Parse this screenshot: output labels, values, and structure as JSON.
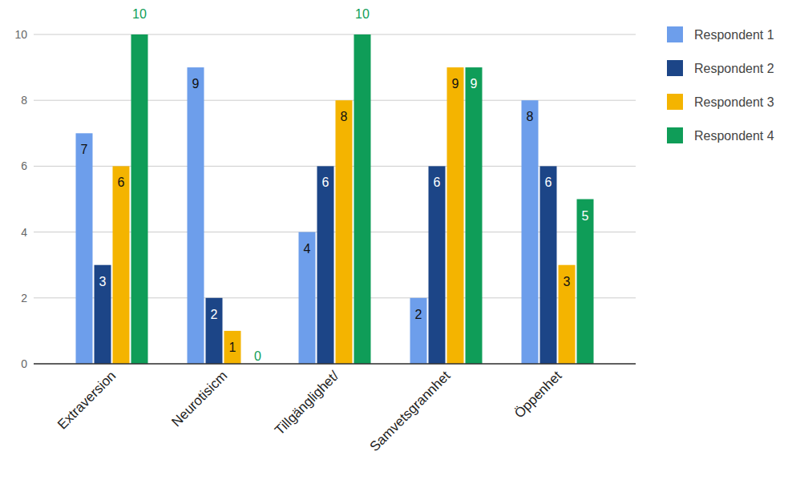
{
  "chart_data": {
    "type": "bar",
    "categories": [
      "Extraversion",
      "Neurotisicm",
      "Tillgänglighet/",
      "Samvetsgrannhet",
      "Öppenhet"
    ],
    "series": [
      {
        "name": "Respondent 1",
        "color": "#6d9eeb",
        "values": [
          7,
          9,
          4,
          2,
          8
        ]
      },
      {
        "name": "Respondent 2",
        "color": "#1c4587",
        "values": [
          3,
          2,
          6,
          6,
          6
        ]
      },
      {
        "name": "Respondent 3",
        "color": "#f4b400",
        "values": [
          6,
          1,
          8,
          9,
          3
        ]
      },
      {
        "name": "Respondent 4",
        "color": "#0f9d58",
        "values": [
          10,
          0,
          10,
          9,
          5
        ]
      }
    ],
    "ylim": [
      0,
      10
    ],
    "yticks": [
      0,
      2,
      4,
      6,
      8,
      10
    ],
    "grid": true,
    "legend": "right",
    "data_labels": true
  }
}
